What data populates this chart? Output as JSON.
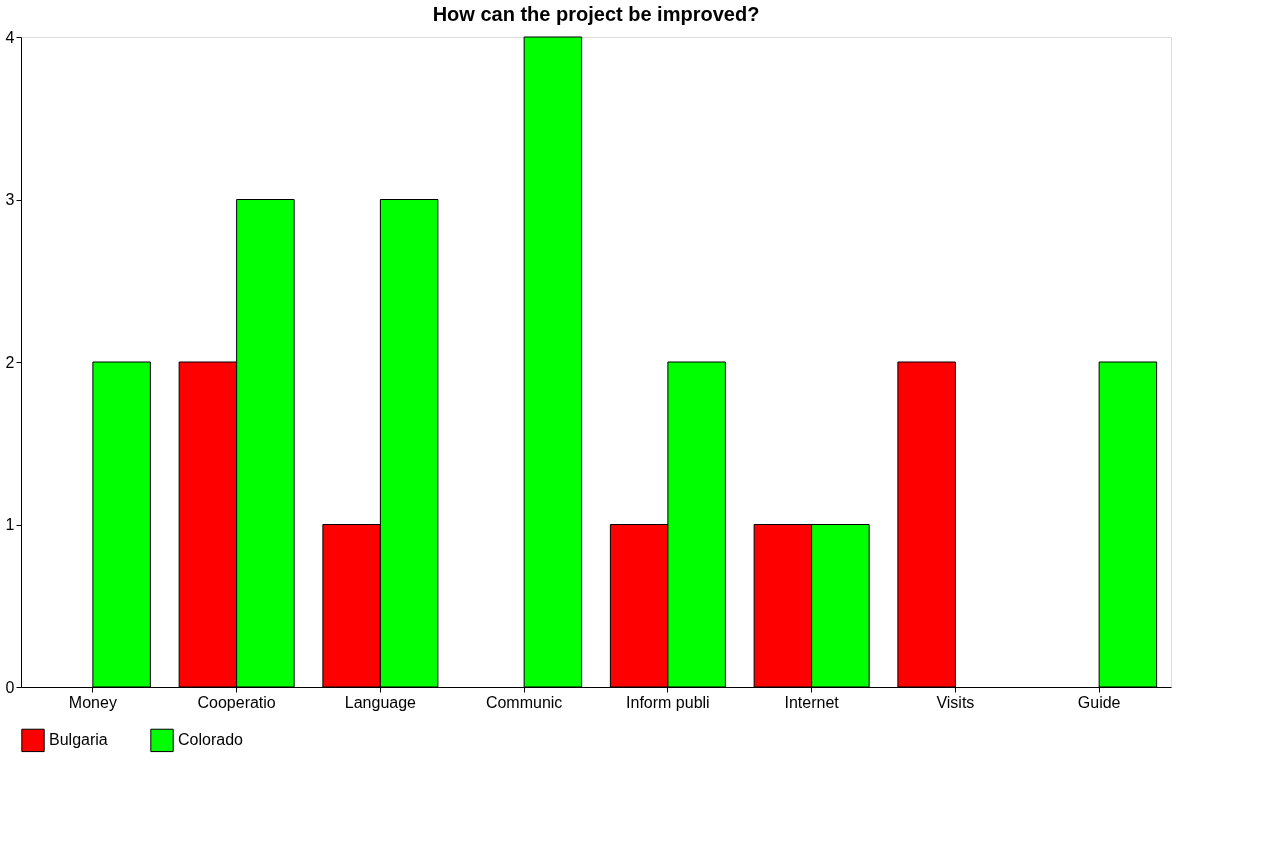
{
  "chart_data": {
    "type": "bar",
    "title": "How can the project be improved?",
    "categories": [
      "Money",
      "Cooperatio",
      "Language",
      "Communic",
      "Inform publi",
      "Internet",
      "Visits",
      "Guide"
    ],
    "series": [
      {
        "name": "Bulgaria",
        "color": "#ff0000",
        "values": [
          null,
          2,
          1,
          null,
          1,
          1,
          2,
          null
        ]
      },
      {
        "name": "Colorado",
        "color": "#00ff00",
        "values": [
          2,
          3,
          3,
          4,
          2,
          1,
          null,
          2
        ]
      }
    ],
    "ylim": [
      0,
      4
    ],
    "yticks": [
      0,
      1,
      2,
      3,
      4
    ],
    "grid": false,
    "legend": "bottom"
  }
}
